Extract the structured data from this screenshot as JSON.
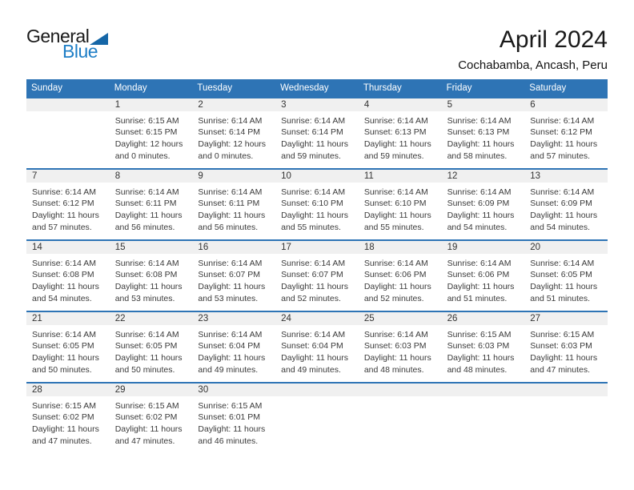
{
  "logo": {
    "part1": "General",
    "part2": "Blue"
  },
  "title": "April 2024",
  "subtitle": "Cochabamba, Ancash, Peru",
  "weekdays": [
    "Sunday",
    "Monday",
    "Tuesday",
    "Wednesday",
    "Thursday",
    "Friday",
    "Saturday"
  ],
  "colors": {
    "header_blue": "#2E74B5",
    "band_gray": "#F0F0F0",
    "logo_blue": "#1E7EC6",
    "triangle_blue": "#1566A7",
    "text_dark": "#3A3A3A"
  },
  "weeks": [
    [
      null,
      {
        "day": "1",
        "lines": [
          "Sunrise: 6:15 AM",
          "Sunset: 6:15 PM",
          "Daylight: 12 hours",
          "and 0 minutes."
        ]
      },
      {
        "day": "2",
        "lines": [
          "Sunrise: 6:14 AM",
          "Sunset: 6:14 PM",
          "Daylight: 12 hours",
          "and 0 minutes."
        ]
      },
      {
        "day": "3",
        "lines": [
          "Sunrise: 6:14 AM",
          "Sunset: 6:14 PM",
          "Daylight: 11 hours",
          "and 59 minutes."
        ]
      },
      {
        "day": "4",
        "lines": [
          "Sunrise: 6:14 AM",
          "Sunset: 6:13 PM",
          "Daylight: 11 hours",
          "and 59 minutes."
        ]
      },
      {
        "day": "5",
        "lines": [
          "Sunrise: 6:14 AM",
          "Sunset: 6:13 PM",
          "Daylight: 11 hours",
          "and 58 minutes."
        ]
      },
      {
        "day": "6",
        "lines": [
          "Sunrise: 6:14 AM",
          "Sunset: 6:12 PM",
          "Daylight: 11 hours",
          "and 57 minutes."
        ]
      }
    ],
    [
      {
        "day": "7",
        "lines": [
          "Sunrise: 6:14 AM",
          "Sunset: 6:12 PM",
          "Daylight: 11 hours",
          "and 57 minutes."
        ]
      },
      {
        "day": "8",
        "lines": [
          "Sunrise: 6:14 AM",
          "Sunset: 6:11 PM",
          "Daylight: 11 hours",
          "and 56 minutes."
        ]
      },
      {
        "day": "9",
        "lines": [
          "Sunrise: 6:14 AM",
          "Sunset: 6:11 PM",
          "Daylight: 11 hours",
          "and 56 minutes."
        ]
      },
      {
        "day": "10",
        "lines": [
          "Sunrise: 6:14 AM",
          "Sunset: 6:10 PM",
          "Daylight: 11 hours",
          "and 55 minutes."
        ]
      },
      {
        "day": "11",
        "lines": [
          "Sunrise: 6:14 AM",
          "Sunset: 6:10 PM",
          "Daylight: 11 hours",
          "and 55 minutes."
        ]
      },
      {
        "day": "12",
        "lines": [
          "Sunrise: 6:14 AM",
          "Sunset: 6:09 PM",
          "Daylight: 11 hours",
          "and 54 minutes."
        ]
      },
      {
        "day": "13",
        "lines": [
          "Sunrise: 6:14 AM",
          "Sunset: 6:09 PM",
          "Daylight: 11 hours",
          "and 54 minutes."
        ]
      }
    ],
    [
      {
        "day": "14",
        "lines": [
          "Sunrise: 6:14 AM",
          "Sunset: 6:08 PM",
          "Daylight: 11 hours",
          "and 54 minutes."
        ]
      },
      {
        "day": "15",
        "lines": [
          "Sunrise: 6:14 AM",
          "Sunset: 6:08 PM",
          "Daylight: 11 hours",
          "and 53 minutes."
        ]
      },
      {
        "day": "16",
        "lines": [
          "Sunrise: 6:14 AM",
          "Sunset: 6:07 PM",
          "Daylight: 11 hours",
          "and 53 minutes."
        ]
      },
      {
        "day": "17",
        "lines": [
          "Sunrise: 6:14 AM",
          "Sunset: 6:07 PM",
          "Daylight: 11 hours",
          "and 52 minutes."
        ]
      },
      {
        "day": "18",
        "lines": [
          "Sunrise: 6:14 AM",
          "Sunset: 6:06 PM",
          "Daylight: 11 hours",
          "and 52 minutes."
        ]
      },
      {
        "day": "19",
        "lines": [
          "Sunrise: 6:14 AM",
          "Sunset: 6:06 PM",
          "Daylight: 11 hours",
          "and 51 minutes."
        ]
      },
      {
        "day": "20",
        "lines": [
          "Sunrise: 6:14 AM",
          "Sunset: 6:05 PM",
          "Daylight: 11 hours",
          "and 51 minutes."
        ]
      }
    ],
    [
      {
        "day": "21",
        "lines": [
          "Sunrise: 6:14 AM",
          "Sunset: 6:05 PM",
          "Daylight: 11 hours",
          "and 50 minutes."
        ]
      },
      {
        "day": "22",
        "lines": [
          "Sunrise: 6:14 AM",
          "Sunset: 6:05 PM",
          "Daylight: 11 hours",
          "and 50 minutes."
        ]
      },
      {
        "day": "23",
        "lines": [
          "Sunrise: 6:14 AM",
          "Sunset: 6:04 PM",
          "Daylight: 11 hours",
          "and 49 minutes."
        ]
      },
      {
        "day": "24",
        "lines": [
          "Sunrise: 6:14 AM",
          "Sunset: 6:04 PM",
          "Daylight: 11 hours",
          "and 49 minutes."
        ]
      },
      {
        "day": "25",
        "lines": [
          "Sunrise: 6:14 AM",
          "Sunset: 6:03 PM",
          "Daylight: 11 hours",
          "and 48 minutes."
        ]
      },
      {
        "day": "26",
        "lines": [
          "Sunrise: 6:15 AM",
          "Sunset: 6:03 PM",
          "Daylight: 11 hours",
          "and 48 minutes."
        ]
      },
      {
        "day": "27",
        "lines": [
          "Sunrise: 6:15 AM",
          "Sunset: 6:03 PM",
          "Daylight: 11 hours",
          "and 47 minutes."
        ]
      }
    ],
    [
      {
        "day": "28",
        "lines": [
          "Sunrise: 6:15 AM",
          "Sunset: 6:02 PM",
          "Daylight: 11 hours",
          "and 47 minutes."
        ]
      },
      {
        "day": "29",
        "lines": [
          "Sunrise: 6:15 AM",
          "Sunset: 6:02 PM",
          "Daylight: 11 hours",
          "and 47 minutes."
        ]
      },
      {
        "day": "30",
        "lines": [
          "Sunrise: 6:15 AM",
          "Sunset: 6:01 PM",
          "Daylight: 11 hours",
          "and 46 minutes."
        ]
      },
      null,
      null,
      null,
      null
    ]
  ]
}
